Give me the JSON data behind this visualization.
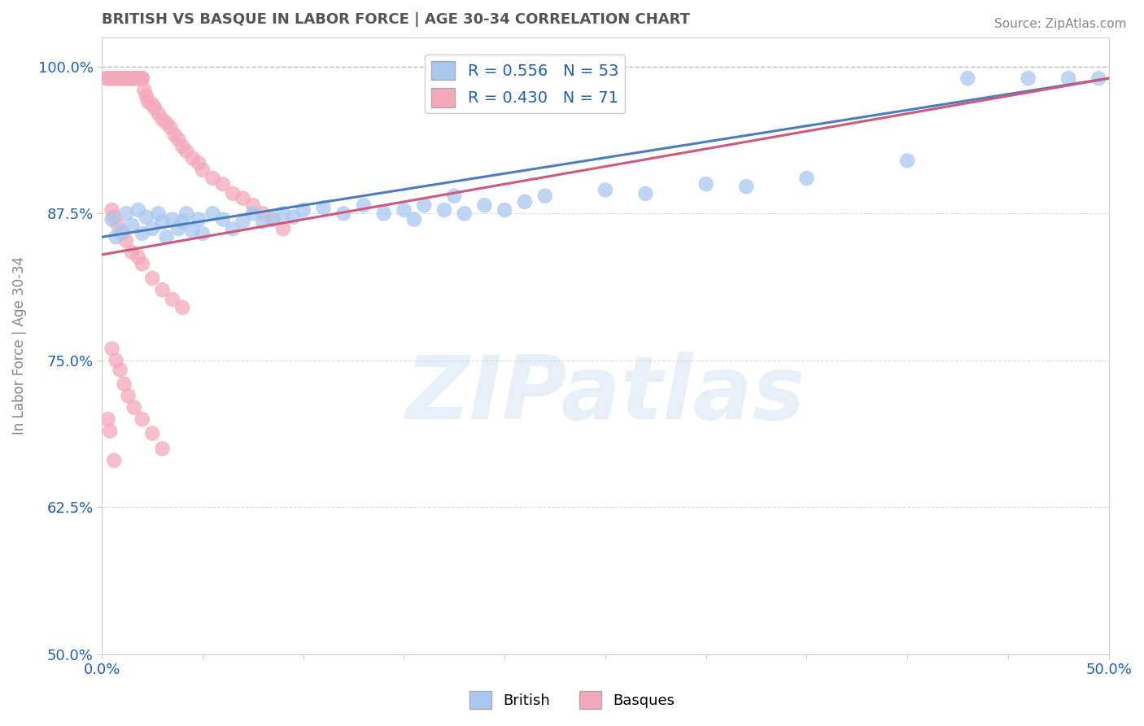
{
  "title": "BRITISH VS BASQUE IN LABOR FORCE | AGE 30-34 CORRELATION CHART",
  "ylabel": "In Labor Force | Age 30-34",
  "source": "Source: ZipAtlas.com",
  "watermark": "ZIPatlas",
  "xlim": [
    0.0,
    0.5
  ],
  "ylim": [
    0.5,
    1.025
  ],
  "xticks": [
    0.0,
    0.05,
    0.1,
    0.15,
    0.2,
    0.25,
    0.3,
    0.35,
    0.4,
    0.45,
    0.5
  ],
  "xticklabels": [
    "0.0%",
    "",
    "",
    "",
    "",
    "",
    "",
    "",
    "",
    "",
    "50.0%"
  ],
  "yticks": [
    0.5,
    0.625,
    0.75,
    0.875,
    1.0
  ],
  "yticklabels": [
    "50.0%",
    "62.5%",
    "75.0%",
    "87.5%",
    "100.0%"
  ],
  "british_R": 0.556,
  "british_N": 53,
  "basque_R": 0.43,
  "basque_N": 71,
  "british_color": "#A8C8F0",
  "basque_color": "#F4A8BC",
  "british_line_color": "#4A7DC0",
  "basque_line_color": "#D05878",
  "legend_color": "#1E5FBB",
  "title_color": "#555555",
  "axis_color": "#888888",
  "tick_color": "#1E5FBB",
  "background_color": "#FFFFFF",
  "watermark_color": "#C8D8F0",
  "dashed_color": "#BBBBBB",
  "british_x": [
    0.005,
    0.007,
    0.01,
    0.012,
    0.015,
    0.018,
    0.02,
    0.022,
    0.025,
    0.028,
    0.03,
    0.032,
    0.035,
    0.038,
    0.04,
    0.042,
    0.045,
    0.048,
    0.05,
    0.055,
    0.06,
    0.065,
    0.07,
    0.075,
    0.08,
    0.085,
    0.09,
    0.095,
    0.1,
    0.11,
    0.12,
    0.13,
    0.14,
    0.15,
    0.155,
    0.16,
    0.17,
    0.175,
    0.18,
    0.19,
    0.2,
    0.21,
    0.22,
    0.25,
    0.27,
    0.3,
    0.32,
    0.35,
    0.4,
    0.43,
    0.46,
    0.48,
    0.495
  ],
  "british_y": [
    0.87,
    0.855,
    0.86,
    0.875,
    0.865,
    0.878,
    0.858,
    0.872,
    0.862,
    0.875,
    0.868,
    0.855,
    0.87,
    0.862,
    0.868,
    0.875,
    0.86,
    0.87,
    0.858,
    0.875,
    0.87,
    0.862,
    0.868,
    0.875,
    0.868,
    0.87,
    0.875,
    0.872,
    0.878,
    0.88,
    0.875,
    0.882,
    0.875,
    0.878,
    0.87,
    0.882,
    0.878,
    0.89,
    0.875,
    0.882,
    0.878,
    0.885,
    0.89,
    0.895,
    0.892,
    0.9,
    0.898,
    0.905,
    0.92,
    0.99,
    0.99,
    0.99,
    0.99
  ],
  "basque_x": [
    0.002,
    0.003,
    0.004,
    0.005,
    0.006,
    0.007,
    0.008,
    0.009,
    0.01,
    0.01,
    0.011,
    0.012,
    0.012,
    0.013,
    0.014,
    0.015,
    0.015,
    0.016,
    0.017,
    0.018,
    0.019,
    0.02,
    0.02,
    0.021,
    0.022,
    0.023,
    0.025,
    0.026,
    0.028,
    0.03,
    0.032,
    0.034,
    0.036,
    0.038,
    0.04,
    0.042,
    0.045,
    0.048,
    0.05,
    0.055,
    0.06,
    0.065,
    0.07,
    0.075,
    0.08,
    0.085,
    0.09,
    0.005,
    0.006,
    0.008,
    0.01,
    0.012,
    0.015,
    0.018,
    0.02,
    0.025,
    0.03,
    0.035,
    0.04,
    0.005,
    0.007,
    0.009,
    0.011,
    0.013,
    0.016,
    0.02,
    0.025,
    0.03,
    0.003,
    0.004,
    0.006
  ],
  "basque_y": [
    0.99,
    0.99,
    0.99,
    0.99,
    0.99,
    0.99,
    0.99,
    0.99,
    0.99,
    0.99,
    0.99,
    0.99,
    0.99,
    0.99,
    0.99,
    0.99,
    0.99,
    0.99,
    0.99,
    0.99,
    0.99,
    0.99,
    0.99,
    0.98,
    0.975,
    0.97,
    0.968,
    0.965,
    0.96,
    0.955,
    0.952,
    0.948,
    0.942,
    0.938,
    0.932,
    0.928,
    0.922,
    0.918,
    0.912,
    0.905,
    0.9,
    0.892,
    0.888,
    0.882,
    0.875,
    0.87,
    0.862,
    0.878,
    0.872,
    0.865,
    0.858,
    0.852,
    0.842,
    0.838,
    0.832,
    0.82,
    0.81,
    0.802,
    0.795,
    0.76,
    0.75,
    0.742,
    0.73,
    0.72,
    0.71,
    0.7,
    0.688,
    0.675,
    0.7,
    0.69,
    0.665
  ]
}
